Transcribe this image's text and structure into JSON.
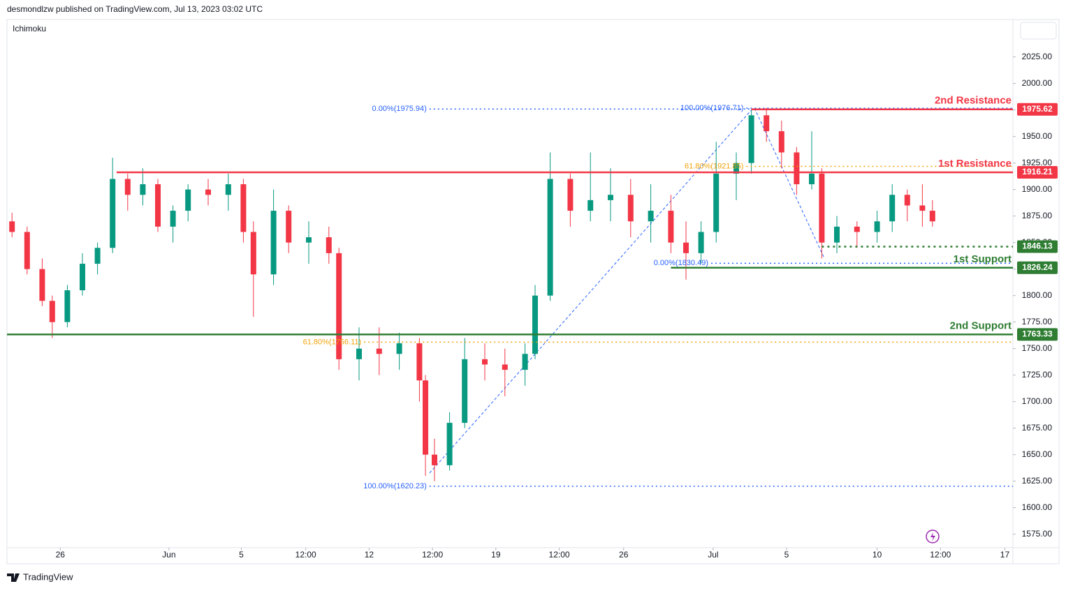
{
  "header": {
    "publisher": "desmondlzw published on TradingView.com, Jul 13, 2023 03:02 UTC",
    "indicator": "Ichimoku",
    "footer": "TradingView"
  },
  "chart_data": {
    "type": "candlestick",
    "x": [
      0.5,
      2,
      3.5,
      4.5,
      6,
      7.5,
      9,
      10.5,
      12,
      13.5,
      15,
      16.5,
      18,
      20,
      22,
      23.5,
      24.5,
      26.5,
      28,
      30,
      32,
      33,
      35,
      37,
      39,
      41,
      41.6,
      42.5,
      44,
      45.5,
      47.5,
      49.5,
      51.5,
      52.5,
      54,
      56,
      58,
      60,
      62,
      64,
      66,
      67.5,
      69,
      70.5,
      72.5,
      74,
      75.5,
      77,
      78.5,
      80,
      81,
      82.5,
      84.5,
      86.5,
      88,
      89.5,
      91,
      92
    ],
    "open": [
      1870,
      1860,
      1825,
      1795,
      1775,
      1805,
      1830,
      1845,
      1910,
      1895,
      1905,
      1865,
      1880,
      1900,
      1895,
      1905,
      1860,
      1820,
      1880,
      1850,
      1855,
      1840,
      1740,
      1750,
      1745,
      1755,
      1720,
      1650,
      1640,
      1680,
      1740,
      1735,
      1730,
      1745,
      1800,
      1910,
      1880,
      1890,
      1895,
      1870,
      1880,
      1850,
      1840,
      1860,
      1915,
      1925,
      1970,
      1955,
      1935,
      1905,
      1915,
      1850,
      1865,
      1860,
      1870,
      1895,
      1885,
      1880
    ],
    "high": [
      1878,
      1865,
      1835,
      1800,
      1810,
      1840,
      1850,
      1930,
      1915,
      1920,
      1910,
      1885,
      1905,
      1910,
      1915,
      1910,
      1870,
      1900,
      1885,
      1870,
      1865,
      1845,
      1770,
      1770,
      1765,
      1760,
      1725,
      1665,
      1690,
      1760,
      1755,
      1750,
      1755,
      1810,
      1935,
      1915,
      1935,
      1920,
      1910,
      1905,
      1895,
      1870,
      1870,
      1945,
      1935,
      1975,
      1977,
      1965,
      1940,
      1955,
      1920,
      1875,
      1870,
      1880,
      1905,
      1900,
      1905,
      1890
    ],
    "low": [
      1855,
      1820,
      1790,
      1760,
      1770,
      1800,
      1820,
      1840,
      1880,
      1885,
      1860,
      1850,
      1870,
      1885,
      1880,
      1850,
      1780,
      1810,
      1840,
      1830,
      1830,
      1730,
      1720,
      1725,
      1730,
      1700,
      1630,
      1625,
      1635,
      1675,
      1720,
      1705,
      1715,
      1740,
      1795,
      1865,
      1870,
      1870,
      1855,
      1850,
      1840,
      1815,
      1830,
      1850,
      1890,
      1915,
      1945,
      1920,
      1895,
      1900,
      1835,
      1840,
      1845,
      1850,
      1860,
      1870,
      1865,
      1865
    ],
    "close": [
      1860,
      1825,
      1795,
      1775,
      1805,
      1830,
      1845,
      1910,
      1895,
      1905,
      1865,
      1880,
      1900,
      1895,
      1905,
      1860,
      1820,
      1880,
      1850,
      1855,
      1840,
      1740,
      1750,
      1745,
      1755,
      1720,
      1650,
      1640,
      1680,
      1740,
      1735,
      1730,
      1745,
      1800,
      1910,
      1880,
      1890,
      1895,
      1870,
      1880,
      1850,
      1840,
      1860,
      1915,
      1925,
      1970,
      1955,
      1935,
      1905,
      1915,
      1850,
      1865,
      1860,
      1870,
      1895,
      1885,
      1880,
      1870
    ],
    "up_color": "#089981",
    "down_color": "#f23645",
    "xlim": [
      0,
      100
    ],
    "xticks": [
      {
        "value": 5.3,
        "label": "26"
      },
      {
        "value": 16.1,
        "label": "Jun"
      },
      {
        "value": 23.3,
        "label": "5"
      },
      {
        "value": 29.7,
        "label": "12:00"
      },
      {
        "value": 36,
        "label": "12"
      },
      {
        "value": 42.3,
        "label": "12:00"
      },
      {
        "value": 48.6,
        "label": "19"
      },
      {
        "value": 54.9,
        "label": "12:00"
      },
      {
        "value": 61.3,
        "label": "26"
      },
      {
        "value": 70.2,
        "label": "Jul"
      },
      {
        "value": 77.5,
        "label": "5"
      },
      {
        "value": 86.5,
        "label": "10"
      },
      {
        "value": 92.8,
        "label": "12:00"
      },
      {
        "value": 99.2,
        "label": "17"
      }
    ],
    "ylim": [
      1562.3,
      2060.3
    ],
    "yticks": [
      {
        "value": 1575,
        "label": "1575.00"
      },
      {
        "value": 1600,
        "label": "1600.00"
      },
      {
        "value": 1625,
        "label": "1625.00"
      },
      {
        "value": 1650,
        "label": "1650.00"
      },
      {
        "value": 1675,
        "label": "1675.00"
      },
      {
        "value": 1700,
        "label": "1700.00"
      },
      {
        "value": 1725,
        "label": "1725.00"
      },
      {
        "value": 1750,
        "label": "1750.00"
      },
      {
        "value": 1775,
        "label": "1775.00"
      },
      {
        "value": 1800,
        "label": "1800.00"
      },
      {
        "value": 1825,
        "label": "1825.00"
      },
      {
        "value": 1850,
        "label": "1850.00"
      },
      {
        "value": 1875,
        "label": "1875.00"
      },
      {
        "value": 1900,
        "label": "1900.00"
      },
      {
        "value": 1925,
        "label": "1925.00"
      },
      {
        "value": 1950,
        "label": "1950.00"
      },
      {
        "value": 1975,
        "label": "1975.00"
      },
      {
        "value": 2000,
        "label": "2000.00"
      },
      {
        "value": 2025,
        "label": "2025.00"
      }
    ],
    "levels": [
      {
        "price": 1975.62,
        "label": "2nd Resistance",
        "color": "#f23645",
        "from": 74.0,
        "style": "solid"
      },
      {
        "price": 1916.21,
        "label": "1st Resistance",
        "color": "#f23645",
        "from": 10.9,
        "style": "solid"
      },
      {
        "price": 1846.13,
        "color": "#2e7d32",
        "from": 81.0,
        "style": "dotted"
      },
      {
        "price": 1826.24,
        "label": "1st Support",
        "color": "#2e7d32",
        "from": 66.0,
        "style": "solid"
      },
      {
        "price": 1763.33,
        "label": "2nd Support",
        "color": "#2e7d32",
        "from": 0,
        "style": "solid"
      }
    ],
    "fib_lines": [
      {
        "text": "0.00%(1975.94)",
        "price": 1975.94,
        "color": "#2962ff",
        "from": 42.0
      },
      {
        "text": "100.00%(1620.23)",
        "price": 1620.23,
        "color": "#2962ff",
        "from": 42.0
      },
      {
        "text": "61.80%(1756.11)",
        "price": 1756.11,
        "color": "#f0a30a",
        "from": 35.5
      },
      {
        "text": "100.00%(1976.71)",
        "price": 1976.71,
        "color": "#2962ff",
        "from": 73.5
      },
      {
        "text": "61.80%(1921.85)",
        "price": 1921.85,
        "color": "#f0a30a",
        "from": 73.5
      },
      {
        "text": "0.00%(1830.49)",
        "price": 1830.49,
        "color": "#2962ff",
        "from": 70.0
      }
    ]
  }
}
